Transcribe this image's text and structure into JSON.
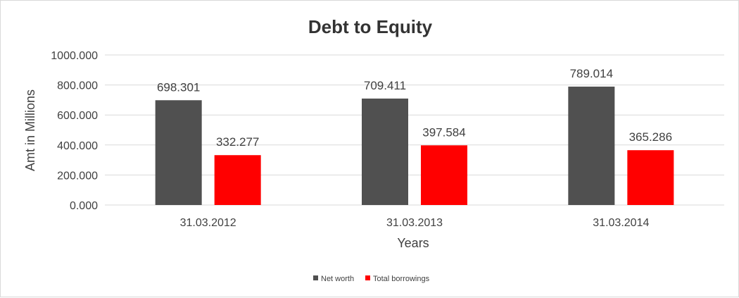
{
  "colors": {
    "net_worth": "#505050",
    "total_borrowings": "#ff0000",
    "text": "#404040",
    "title": "#333333",
    "grid": "#d9d9d9"
  },
  "chart_data": {
    "type": "bar",
    "title": "Debt to Equity",
    "xlabel": "Years",
    "ylabel": "Amt in Millions",
    "categories": [
      "31.03.2012",
      "31.03.2013",
      "31.03.2014"
    ],
    "series": [
      {
        "name": "Net worth",
        "values": [
          698.301,
          709.411,
          789.014
        ],
        "labels": [
          "698.301",
          "709.411",
          "789.014"
        ]
      },
      {
        "name": "Total borrowings",
        "values": [
          332.277,
          397.584,
          365.286
        ],
        "labels": [
          "332.277",
          "397.584",
          "365.286"
        ]
      }
    ],
    "ylim": [
      0,
      1000
    ],
    "yticks": [
      0,
      200,
      400,
      600,
      800,
      1000
    ],
    "ytick_labels": [
      "0.000",
      "200.000",
      "400.000",
      "600.000",
      "800.000",
      "1000.000"
    ],
    "grid": true,
    "legend": "bottom"
  }
}
